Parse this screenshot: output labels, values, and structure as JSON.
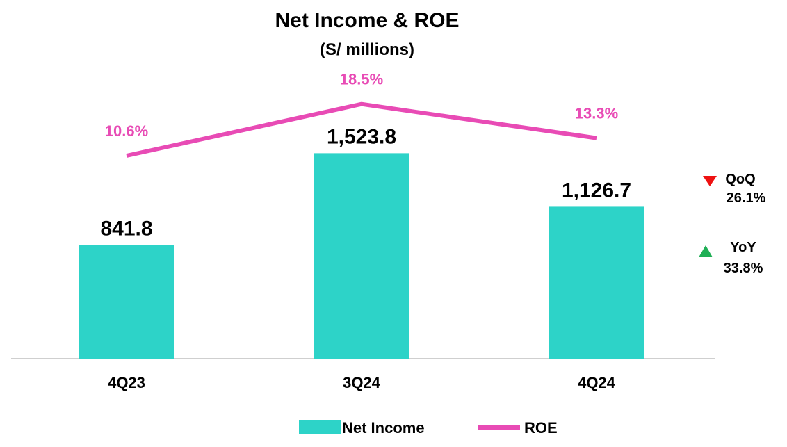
{
  "chart_data": {
    "type": "bar",
    "title": "Net Income & ROE",
    "subtitle": "(S/ millions)",
    "categories": [
      "4Q23",
      "3Q24",
      "4Q24"
    ],
    "series": [
      {
        "name": "Net Income",
        "type": "bar",
        "values": [
          841.8,
          1523.8,
          1126.7
        ],
        "labels": [
          "841.8",
          "1,523.8",
          "1,126.7"
        ],
        "color": "#2DD3C8"
      },
      {
        "name": "ROE",
        "type": "line",
        "values": [
          10.6,
          18.5,
          13.3
        ],
        "labels": [
          "10.6%",
          "18.5%",
          "13.3%"
        ],
        "color": "#E84BB5"
      }
    ],
    "legend_position": "bottom",
    "grid": false,
    "annotations": [
      {
        "label": "QoQ",
        "value": "26.1%",
        "direction": "down",
        "color": "#EE1111"
      },
      {
        "label": "YoY",
        "value": "33.8%",
        "direction": "up",
        "color": "#1FAF55"
      }
    ]
  }
}
